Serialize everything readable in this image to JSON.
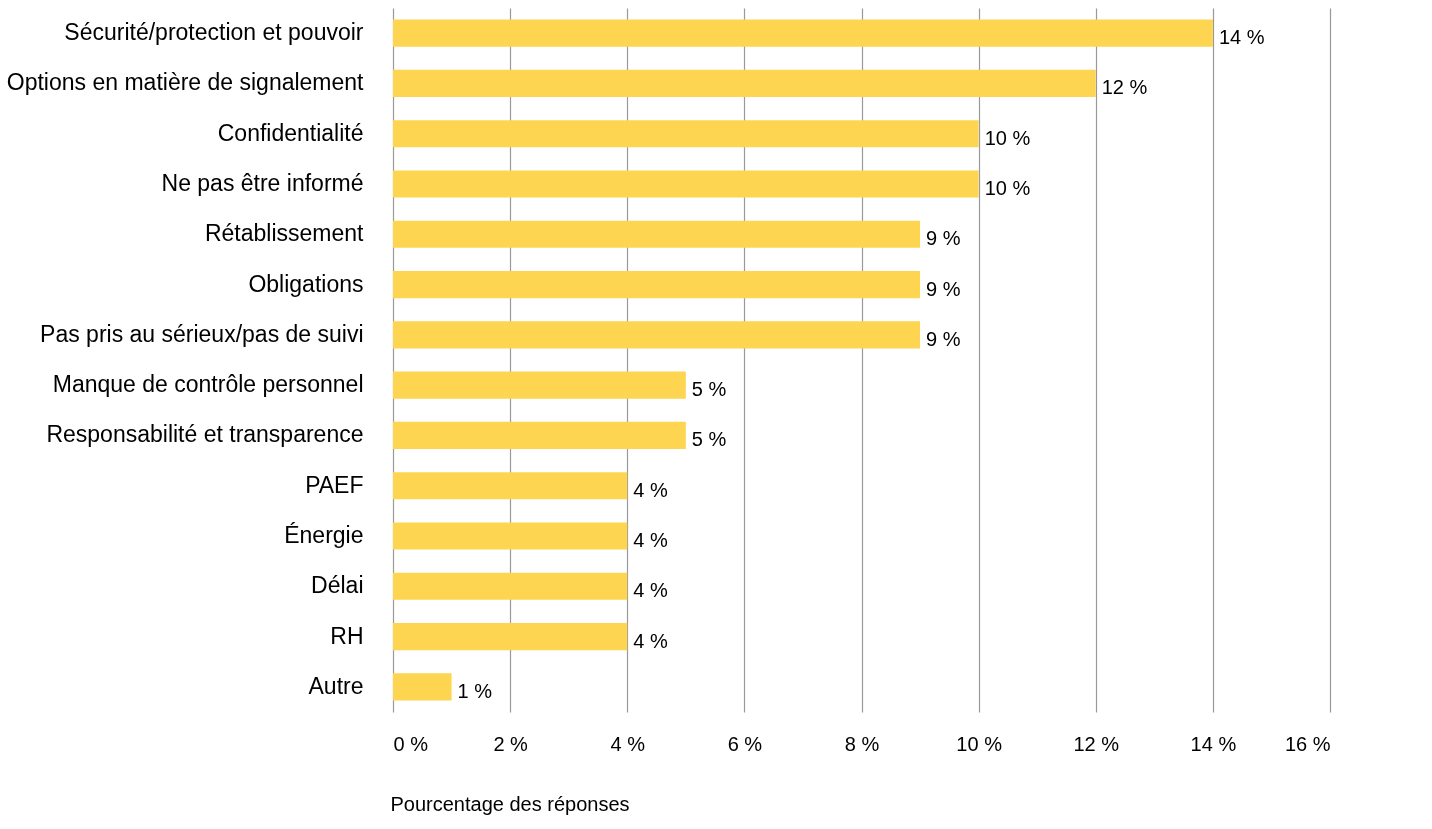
{
  "chart_data": {
    "type": "bar",
    "orientation": "horizontal",
    "xlabel": "Pourcentage des réponses",
    "categories": [
      "Sécurité/protection et pouvoir",
      "Options en matière de signalement",
      "Confidentialité",
      "Ne pas être informé",
      "Rétablissement",
      "Obligations",
      "Pas pris au sérieux/pas de suivi",
      "Manque de contrôle personnel",
      "Responsabilité et transparence",
      "PAEF",
      "Énergie",
      "Délai",
      "RH",
      "Autre"
    ],
    "values": [
      14,
      12,
      10,
      10,
      9,
      9,
      9,
      5,
      5,
      4,
      4,
      4,
      4,
      1
    ],
    "value_labels": [
      "14 %",
      "12 %",
      "10 %",
      "10 %",
      "9 %",
      "9 %",
      "9 %",
      "5 %",
      "5 %",
      "4 %",
      "4 %",
      "4 %",
      "4 %",
      "1 %"
    ],
    "color": "#fdd550",
    "xlim": [
      0,
      16
    ],
    "xticks": [
      {
        "value": 0,
        "label": "0 %"
      },
      {
        "value": 2,
        "label": "2 %"
      },
      {
        "value": 4,
        "label": "4 %"
      },
      {
        "value": 6,
        "label": "6 %"
      },
      {
        "value": 8,
        "label": "8 %"
      },
      {
        "value": 10,
        "label": "10 %"
      },
      {
        "value": 12,
        "label": "12 %"
      },
      {
        "value": 14,
        "label": "14 %"
      },
      {
        "value": 16,
        "label": "16 %"
      }
    ],
    "grid": "x"
  }
}
